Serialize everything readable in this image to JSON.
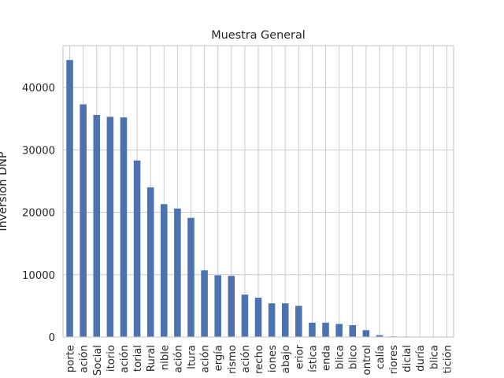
{
  "chart_data": {
    "type": "bar",
    "title": "Muestra General",
    "xlabel": "",
    "ylabel": "Inversion DNP",
    "ylim": [
      0,
      46700
    ],
    "yticks": [
      0,
      10000,
      20000,
      30000,
      40000
    ],
    "ytick_labels": [
      "0",
      "10000",
      "20000",
      "30000",
      "40000"
    ],
    "grid": true,
    "bar_color": "#4c72b0",
    "categories": [
      "porte",
      "ación",
      "Social",
      "itorio",
      "ación",
      "torial",
      "Rural",
      "nible",
      "ación",
      "ltura",
      "ación",
      "ergía",
      "rismo",
      "ación",
      "recho",
      "iones",
      "abajo",
      "erior",
      "ística",
      "enda",
      "blica",
      "blico",
      "ontrol",
      "calía",
      "riores",
      "dicial",
      "duría",
      "blica",
      "tición"
    ],
    "values": [
      44400,
      37300,
      35600,
      35300,
      35200,
      28300,
      24000,
      21300,
      20600,
      19100,
      10700,
      9900,
      9800,
      6800,
      6300,
      5400,
      5400,
      5000,
      2300,
      2300,
      2100,
      1900,
      1100,
      300,
      100,
      80,
      60,
      40,
      30
    ]
  }
}
